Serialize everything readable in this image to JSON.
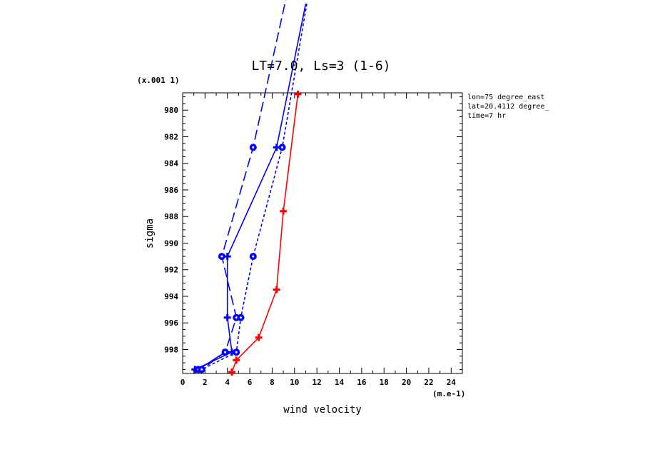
{
  "chart_data": {
    "type": "line",
    "title": "LT=7.0, Ls=3 (1-6)",
    "xlabel": "wind velocity",
    "ylabel": "sigma",
    "x_unit": "(m.e-1)",
    "y_scale_note": "(x.001 1)",
    "xlim": [
      0,
      25
    ],
    "ylim": [
      999.8,
      978.7
    ],
    "x_ticks": [
      "0",
      "2",
      "4",
      "6",
      "8",
      "10",
      "12",
      "14",
      "16",
      "18",
      "20",
      "22",
      "24"
    ],
    "y_ticks": [
      "980",
      "982",
      "984",
      "986",
      "988",
      "990",
      "992",
      "994",
      "996",
      "998"
    ],
    "annotations": [
      "lon=75 degree_east",
      "lat=20.4112 degree_",
      "time=7 hr"
    ],
    "grid": false,
    "series": [
      {
        "color": "#ff0000",
        "line": "solid",
        "marker": "plus",
        "x": [
          10.3,
          9.0,
          8.4,
          6.8,
          4.8,
          4.4
        ],
        "y": [
          978.8,
          987.6,
          993.5,
          997.1,
          998.8,
          999.7
        ]
      },
      {
        "color": "#0000ff",
        "line": "solid",
        "marker": "plus",
        "x": [
          11.0,
          8.4,
          4.0,
          4.0,
          4.4,
          1.1
        ],
        "y": [
          972.0,
          982.8,
          991.0,
          995.6,
          998.2,
          999.5
        ]
      },
      {
        "color": "#0000ff",
        "line": "solid",
        "marker": "circle",
        "x": [
          3.8,
          1.4
        ],
        "y": [
          998.2,
          999.5
        ]
      },
      {
        "color": "#0000ff",
        "line": "longdash",
        "marker": "circle",
        "x": [
          9.4,
          6.3,
          3.5,
          4.8,
          3.8,
          1.7
        ],
        "y": [
          971.0,
          982.8,
          991.0,
          995.6,
          998.2,
          999.5
        ]
      },
      {
        "color": "#0000ff",
        "line": "shortdash",
        "marker": "circle",
        "x": [
          11.1,
          8.9,
          6.3,
          5.2,
          4.8,
          1.7
        ],
        "y": [
          972.0,
          982.8,
          991.0,
          995.6,
          998.2,
          999.5
        ]
      }
    ]
  }
}
